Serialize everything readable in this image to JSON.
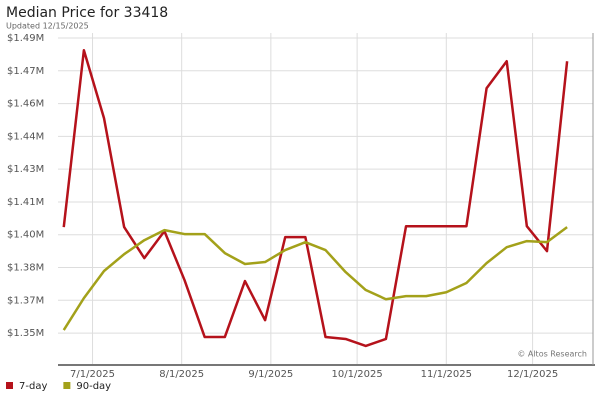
{
  "chart_data": {
    "type": "line",
    "title": "Median Price for 33418",
    "subtitle": "Updated 12/15/2025",
    "watermark": "© Altos Research",
    "x": [
      "6/21/2025",
      "6/28/2025",
      "7/5/2025",
      "7/12/2025",
      "7/19/2025",
      "7/26/2025",
      "8/2/2025",
      "8/9/2025",
      "8/16/2025",
      "8/23/2025",
      "8/30/2025",
      "9/6/2025",
      "9/13/2025",
      "9/20/2025",
      "9/27/2025",
      "10/4/2025",
      "10/11/2025",
      "10/18/2025",
      "10/25/2025",
      "11/1/2025",
      "11/8/2025",
      "11/15/2025",
      "11/22/2025",
      "11/29/2025",
      "12/6/2025",
      "12/13/2025"
    ],
    "series": [
      {
        "name": "7-day",
        "color": "#b5121b",
        "values": [
          1398500,
          1479400,
          1448300,
          1398500,
          1384300,
          1396650,
          1374200,
          1348200,
          1348200,
          1373800,
          1355900,
          1393900,
          1393900,
          1348200,
          1347300,
          1344100,
          1347300,
          1398900,
          1398900,
          1398900,
          1398900,
          1462000,
          1474400,
          1398900,
          1387500,
          1474400
        ]
      },
      {
        "name": "90-day",
        "color": "#a3a11a",
        "values": [
          1351400,
          1366000,
          1378400,
          1386100,
          1392500,
          1397100,
          1395300,
          1395300,
          1386600,
          1381600,
          1382500,
          1388000,
          1391600,
          1388000,
          1377900,
          1369700,
          1365500,
          1366900,
          1366900,
          1368700,
          1372900,
          1382000,
          1389300,
          1392100,
          1391600,
          1398500
        ]
      }
    ],
    "xlim": [
      "6/19/2025",
      "12/22/2025"
    ],
    "xticks": [
      "7/1/2025",
      "8/1/2025",
      "9/1/2025",
      "10/1/2025",
      "11/1/2025",
      "12/1/2025"
    ],
    "ylim": [
      1335400,
      1487300
    ],
    "yticks": [
      {
        "value": 1350000,
        "label": "$1.35M"
      },
      {
        "value": 1365000,
        "label": "$1.37M"
      },
      {
        "value": 1380000,
        "label": "$1.38M"
      },
      {
        "value": 1395000,
        "label": "$1.40M"
      },
      {
        "value": 1410000,
        "label": "$1.41M"
      },
      {
        "value": 1425000,
        "label": "$1.43M"
      },
      {
        "value": 1440000,
        "label": "$1.44M"
      },
      {
        "value": 1455000,
        "label": "$1.46M"
      },
      {
        "value": 1470000,
        "label": "$1.47M"
      },
      {
        "value": 1485000,
        "label": "$1.49M"
      }
    ],
    "grid": true,
    "legend": "bottom-left"
  }
}
